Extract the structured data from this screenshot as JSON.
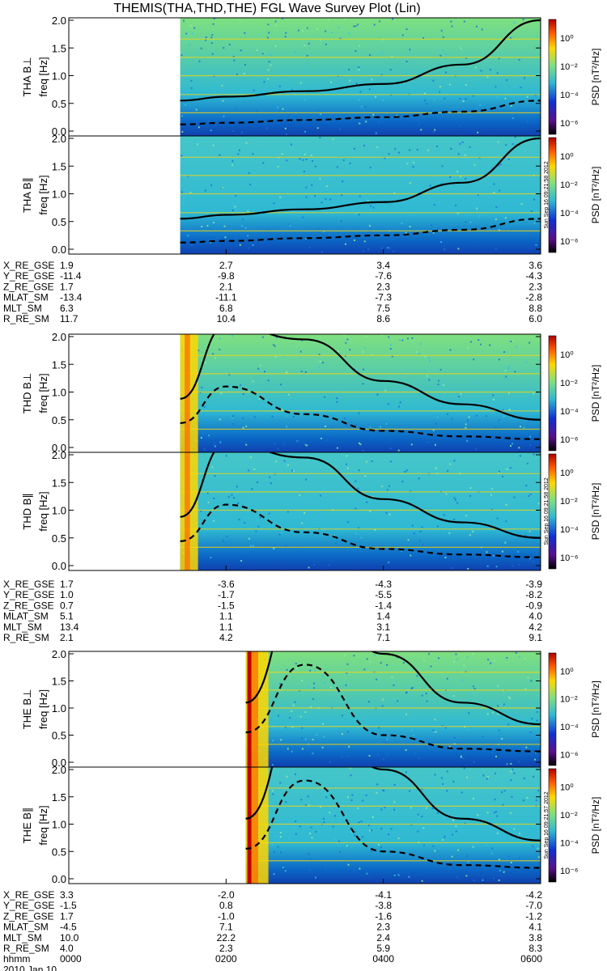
{
  "title": "THEMIS(THA,THD,THE) FGL Wave Survey Plot (Lin)",
  "colors": {
    "background": "#0b67c6",
    "mid": "#2fb9d3",
    "high": "#7fe07f",
    "hot": "#ffd700",
    "line": "#000000"
  },
  "colorbar": {
    "label": "PSD [nT²/Hz]",
    "ticks": [
      "10⁰",
      "10⁻²",
      "10⁻⁴",
      "10⁻⁶"
    ]
  },
  "stamps": [
    "Sun Sep 16 09:21:58 2012",
    "Sun Sep 16 09:21:58 2012",
    "Sun Sep 16 09:21:57 2012"
  ],
  "time_axis": {
    "row_label": "hhmm",
    "date": "2010 Jan 10",
    "ticks": [
      "0000",
      "0200",
      "0400",
      "0600"
    ]
  },
  "chart_data": [
    {
      "type": "heatmap",
      "ylabel": "THA B⊥",
      "yunit": "freq [Hz]",
      "ylim": [
        0,
        2.0
      ],
      "yticks": [
        "0.0",
        "0.5",
        "1.0",
        "1.5",
        "2.0"
      ],
      "data_start": "0125",
      "fce_line": {
        "x": [
          "0125",
          "0200",
          "0300",
          "0400",
          "0500",
          "0600"
        ],
        "y": [
          0.55,
          0.62,
          0.72,
          0.85,
          1.2,
          2.0
        ]
      },
      "half_fce_line": {
        "x": [
          "0125",
          "0200",
          "0300",
          "0400",
          "0500",
          "0600"
        ],
        "y": [
          0.12,
          0.15,
          0.2,
          0.25,
          0.35,
          0.55
        ]
      }
    },
    {
      "type": "heatmap",
      "ylabel": "THA B∥",
      "yunit": "freq [Hz]",
      "ylim": [
        0,
        2.0
      ],
      "yticks": [
        "0.0",
        "0.5",
        "1.0",
        "1.5",
        "2.0"
      ],
      "data_start": "0125",
      "fce_line": {
        "x": [
          "0125",
          "0200",
          "0300",
          "0400",
          "0500",
          "0600"
        ],
        "y": [
          0.55,
          0.62,
          0.72,
          0.85,
          1.2,
          2.0
        ]
      },
      "half_fce_line": {
        "x": [
          "0125",
          "0200",
          "0300",
          "0400",
          "0500",
          "0600"
        ],
        "y": [
          0.12,
          0.15,
          0.2,
          0.25,
          0.35,
          0.55
        ]
      }
    },
    {
      "type": "heatmap",
      "ylabel": "THD B⊥",
      "yunit": "freq [Hz]",
      "ylim": [
        0,
        2.0
      ],
      "yticks": [
        "0.0",
        "0.5",
        "1.0",
        "1.5",
        "2.0"
      ],
      "data_start": "0125",
      "fce_line": {
        "x": [
          "0125",
          "0200",
          "0300",
          "0400",
          "0500",
          "0600"
        ],
        "y": [
          0.88,
          2.2,
          1.95,
          1.2,
          0.78,
          0.5
        ]
      },
      "half_fce_line": {
        "x": [
          "0125",
          "0200",
          "0300",
          "0400",
          "0500",
          "0600"
        ],
        "y": [
          0.44,
          1.1,
          0.6,
          0.3,
          0.2,
          0.15
        ]
      }
    },
    {
      "type": "heatmap",
      "ylabel": "THD B∥",
      "yunit": "freq [Hz]",
      "ylim": [
        0,
        2.0
      ],
      "yticks": [
        "0.0",
        "0.5",
        "1.0",
        "1.5",
        "2.0"
      ],
      "data_start": "0125",
      "fce_line": {
        "x": [
          "0125",
          "0200",
          "0300",
          "0400",
          "0500",
          "0600"
        ],
        "y": [
          0.88,
          2.2,
          1.95,
          1.2,
          0.78,
          0.5
        ]
      },
      "half_fce_line": {
        "x": [
          "0125",
          "0200",
          "0300",
          "0400",
          "0500",
          "0600"
        ],
        "y": [
          0.44,
          1.1,
          0.6,
          0.3,
          0.2,
          0.15
        ]
      }
    },
    {
      "type": "heatmap",
      "ylabel": "THE B⊥",
      "yunit": "freq [Hz]",
      "ylim": [
        0,
        2.0
      ],
      "yticks": [
        "0.0",
        "0.5",
        "1.0",
        "1.5",
        "2.0"
      ],
      "data_start": "0215",
      "fce_line": {
        "x": [
          "0215",
          "0300",
          "0400",
          "0500",
          "0600"
        ],
        "y": [
          1.1,
          3.5,
          2.0,
          1.1,
          0.7
        ]
      },
      "half_fce_line": {
        "x": [
          "0215",
          "0300",
          "0400",
          "0500",
          "0600"
        ],
        "y": [
          0.55,
          1.8,
          0.5,
          0.25,
          0.2
        ]
      }
    },
    {
      "type": "heatmap",
      "ylabel": "THE B∥",
      "yunit": "freq [Hz]",
      "ylim": [
        0,
        2.0
      ],
      "yticks": [
        "0.0",
        "0.5",
        "1.0",
        "1.5",
        "2.0"
      ],
      "data_start": "0215",
      "fce_line": {
        "x": [
          "0215",
          "0300",
          "0400",
          "0500",
          "0600"
        ],
        "y": [
          1.1,
          3.5,
          2.0,
          1.1,
          0.7
        ]
      },
      "half_fce_line": {
        "x": [
          "0215",
          "0300",
          "0400",
          "0500",
          "0600"
        ],
        "y": [
          0.55,
          1.8,
          0.5,
          0.25,
          0.2
        ]
      }
    }
  ],
  "ephemeris": [
    {
      "probe": "THA",
      "rows": [
        {
          "label": "X_RE_GSE",
          "values": [
            "1.9",
            "2.7",
            "3.4",
            "3.6"
          ]
        },
        {
          "label": "Y_RE_GSE",
          "values": [
            "-11.4",
            "-9.8",
            "-7.6",
            "-4.3"
          ]
        },
        {
          "label": "Z_RE_GSE",
          "values": [
            "1.7",
            "2.1",
            "2.3",
            "2.3"
          ]
        },
        {
          "label": "MLAT_SM",
          "values": [
            "-13.4",
            "-11.1",
            "-7.3",
            "-2.8"
          ]
        },
        {
          "label": "MLT_SM",
          "values": [
            "6.3",
            "6.8",
            "7.5",
            "8.8"
          ]
        },
        {
          "label": "R_RE_SM",
          "values": [
            "11.7",
            "10.4",
            "8.6",
            "6.0"
          ]
        }
      ]
    },
    {
      "probe": "THD",
      "rows": [
        {
          "label": "X_RE_GSE",
          "values": [
            "1.7",
            "-3.6",
            "-4.3",
            "-3.9"
          ]
        },
        {
          "label": "Y_RE_GSE",
          "values": [
            "1.0",
            "-1.7",
            "-5.5",
            "-8.2"
          ]
        },
        {
          "label": "Z_RE_GSE",
          "values": [
            "0.7",
            "-1.5",
            "-1.4",
            "-0.9"
          ]
        },
        {
          "label": "MLAT_SM",
          "values": [
            "5.1",
            "1.1",
            "1.4",
            "4.0"
          ]
        },
        {
          "label": "MLT_SM",
          "values": [
            "13.4",
            "1.1",
            "3.1",
            "4.2"
          ]
        },
        {
          "label": "R_RE_SM",
          "values": [
            "2.1",
            "4.2",
            "7.1",
            "9.1"
          ]
        }
      ]
    },
    {
      "probe": "THE",
      "rows": [
        {
          "label": "X_RE_GSE",
          "values": [
            "3.3",
            "-2.0",
            "-4.1",
            "-4.2"
          ]
        },
        {
          "label": "Y_RE_GSE",
          "values": [
            "-1.5",
            "0.8",
            "-3.8",
            "-7.0"
          ]
        },
        {
          "label": "Z_RE_GSE",
          "values": [
            "1.7",
            "-1.0",
            "-1.6",
            "-1.2"
          ]
        },
        {
          "label": "MLAT_SM",
          "values": [
            "-4.5",
            "7.1",
            "2.3",
            "4.1"
          ]
        },
        {
          "label": "MLT_SM",
          "values": [
            "10.0",
            "22.2",
            "2.4",
            "3.8"
          ]
        },
        {
          "label": "R_RE_SM",
          "values": [
            "4.0",
            "2.3",
            "5.9",
            "8.3"
          ]
        }
      ]
    }
  ]
}
